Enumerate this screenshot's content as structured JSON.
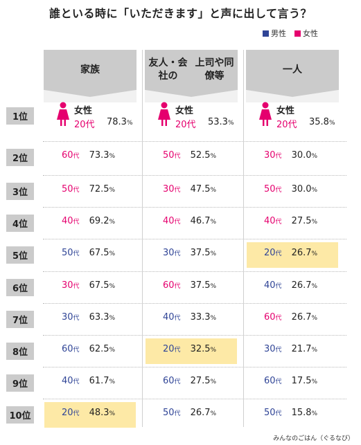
{
  "title": "誰といる時に「いただきます」と声に出して言う？",
  "legend": [
    {
      "label": "男性",
      "color": "#2f4496"
    },
    {
      "label": "女性",
      "color": "#e5006e"
    }
  ],
  "source": "みんなのごはん（ぐるなび）",
  "colors": {
    "male": "#2f4496",
    "female": "#e5006e",
    "highlight": "#fde9a6"
  },
  "chart_data": {
    "type": "table",
    "title": "誰といる時に「いただきます」と声に出して言う？",
    "columns": [
      "家族",
      "友人・会社の上司や同僚等",
      "一人"
    ],
    "column_lines": [
      [
        "家族"
      ],
      [
        "友人・会社の",
        "上司や同僚等"
      ],
      [
        "一人"
      ]
    ],
    "ranks": [
      "1位",
      "2位",
      "3位",
      "4位",
      "5位",
      "6位",
      "7位",
      "8位",
      "9位",
      "10位"
    ],
    "age_suffix": "代",
    "percent_sign": "%",
    "top_label": "女性",
    "rows": [
      [
        {
          "age": "20",
          "sex": "female",
          "value": 78.3
        },
        {
          "age": "20",
          "sex": "female",
          "value": 53.3
        },
        {
          "age": "20",
          "sex": "female",
          "value": 35.8
        }
      ],
      [
        {
          "age": "60",
          "sex": "female",
          "value": 73.3
        },
        {
          "age": "50",
          "sex": "female",
          "value": 52.5
        },
        {
          "age": "30",
          "sex": "female",
          "value": 30.0
        }
      ],
      [
        {
          "age": "50",
          "sex": "female",
          "value": 72.5
        },
        {
          "age": "30",
          "sex": "female",
          "value": 47.5
        },
        {
          "age": "50",
          "sex": "female",
          "value": 30.0
        }
      ],
      [
        {
          "age": "40",
          "sex": "female",
          "value": 69.2
        },
        {
          "age": "40",
          "sex": "female",
          "value": 46.7
        },
        {
          "age": "40",
          "sex": "female",
          "value": 27.5
        }
      ],
      [
        {
          "age": "50",
          "sex": "male",
          "value": 67.5
        },
        {
          "age": "30",
          "sex": "male",
          "value": 37.5
        },
        {
          "age": "20",
          "sex": "male",
          "value": 26.7,
          "highlight": true
        }
      ],
      [
        {
          "age": "30",
          "sex": "female",
          "value": 67.5
        },
        {
          "age": "60",
          "sex": "female",
          "value": 37.5
        },
        {
          "age": "40",
          "sex": "male",
          "value": 26.7
        }
      ],
      [
        {
          "age": "30",
          "sex": "male",
          "value": 63.3
        },
        {
          "age": "40",
          "sex": "male",
          "value": 33.3
        },
        {
          "age": "60",
          "sex": "female",
          "value": 26.7
        }
      ],
      [
        {
          "age": "60",
          "sex": "male",
          "value": 62.5
        },
        {
          "age": "20",
          "sex": "male",
          "value": 32.5,
          "highlight": true
        },
        {
          "age": "30",
          "sex": "male",
          "value": 21.7
        }
      ],
      [
        {
          "age": "40",
          "sex": "male",
          "value": 61.7
        },
        {
          "age": "60",
          "sex": "male",
          "value": 27.5
        },
        {
          "age": "60",
          "sex": "male",
          "value": 17.5
        }
      ],
      [
        {
          "age": "20",
          "sex": "male",
          "value": 48.3,
          "highlight": true
        },
        {
          "age": "50",
          "sex": "male",
          "value": 26.7
        },
        {
          "age": "50",
          "sex": "male",
          "value": 15.8
        }
      ]
    ]
  }
}
